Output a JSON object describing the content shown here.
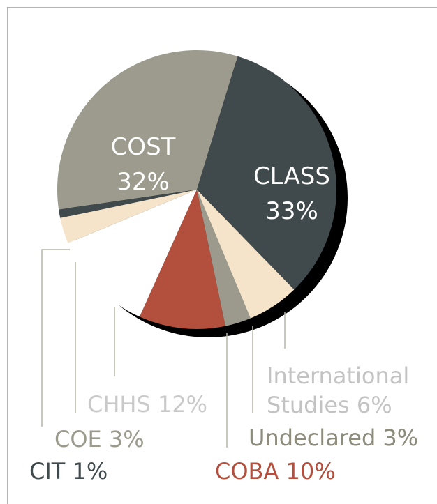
{
  "chart_data": {
    "type": "pie",
    "categories": [
      "CLASS",
      "International Studies",
      "Undeclared",
      "COBA",
      "CHHS",
      "COE",
      "CIT",
      "COST"
    ],
    "values": [
      33,
      6,
      3,
      10,
      12,
      3,
      1,
      32
    ],
    "value_labels": [
      "33%",
      "6%",
      "3%",
      "10%",
      "12%",
      "3%",
      "1%",
      "32%"
    ],
    "colors": [
      "#404a4d",
      "#f5e4ca",
      "#9b9a8d",
      "#b24f3d",
      "#ffffff",
      "#f5e4ca",
      "#404a4d",
      "#9c9b8e"
    ],
    "label_colors": [
      "#ffffff",
      "#c3c3c3",
      "#8d8b7c",
      "#b24f3d",
      "#c9c9c9",
      "#9b9a8d",
      "#404a4d",
      "#ffffff"
    ]
  }
}
